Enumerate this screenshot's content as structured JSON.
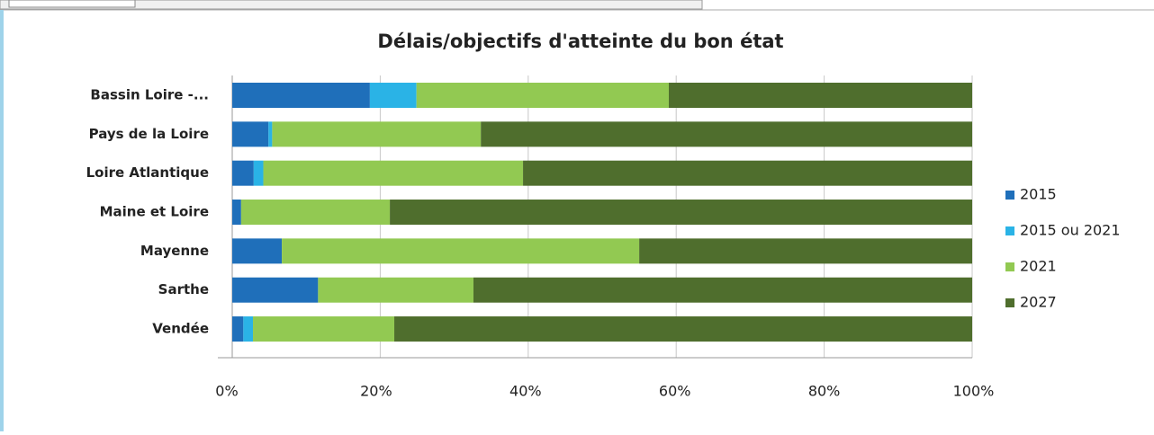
{
  "chart_data": {
    "type": "bar",
    "orientation": "horizontal",
    "stacked": true,
    "title": "Délais/objectifs d'atteinte du bon état",
    "categories": [
      "Bassin Loire -...",
      "Pays de la Loire",
      "Loire Atlantique",
      "Maine et Loire",
      "Mayenne",
      "Sarthe",
      "Vendée"
    ],
    "series": [
      {
        "name": "2015",
        "color": "#1f6fba",
        "values": [
          18.6,
          4.9,
          2.9,
          1.2,
          6.7,
          11.6,
          1.5
        ]
      },
      {
        "name": "2015 ou 2021",
        "color": "#2ab3e6",
        "values": [
          6.3,
          0.5,
          1.3,
          0,
          0,
          0,
          1.3
        ]
      },
      {
        "name": "2021",
        "color": "#92c952",
        "values": [
          34.1,
          28.2,
          35.1,
          20.1,
          48.3,
          21.0,
          19.1
        ]
      },
      {
        "name": "2027",
        "color": "#4f6e2d",
        "values": [
          41.0,
          66.4,
          60.7,
          78.7,
          45.0,
          67.4,
          78.1
        ]
      }
    ],
    "xlim": [
      0,
      100
    ],
    "xticks": [
      {
        "value": 0,
        "label": "0%"
      },
      {
        "value": 20,
        "label": "20%"
      },
      {
        "value": 40,
        "label": "40%"
      },
      {
        "value": 60,
        "label": "60%"
      },
      {
        "value": 80,
        "label": "80%"
      },
      {
        "value": 100,
        "label": "100%"
      }
    ],
    "grid": true,
    "legend": "right"
  }
}
